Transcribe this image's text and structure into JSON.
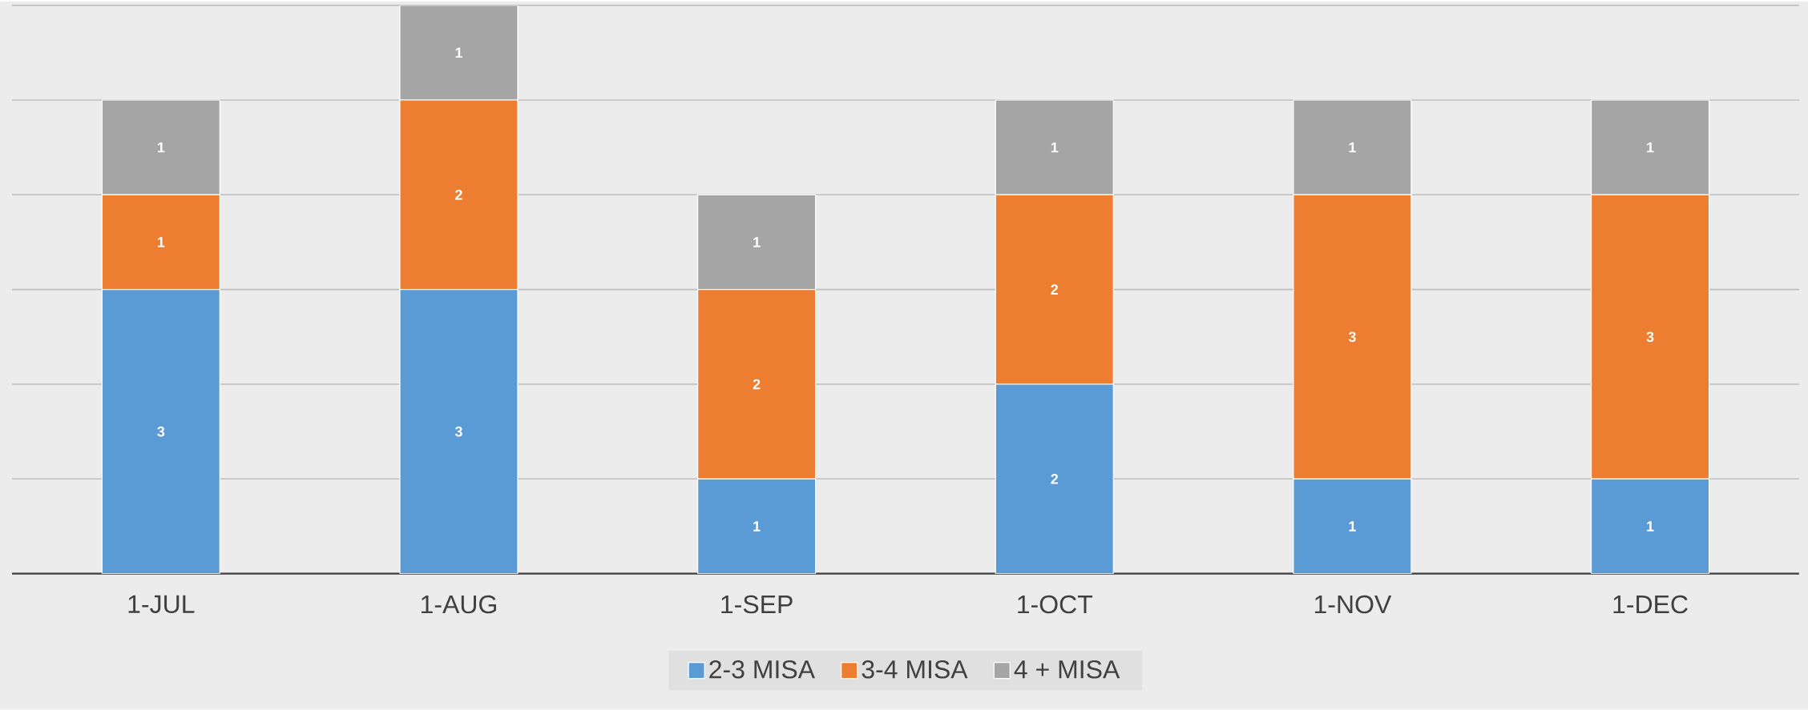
{
  "chart_data": {
    "type": "bar",
    "stacked": true,
    "categories": [
      "1-JUL",
      "1-AUG",
      "1-SEP",
      "1-OCT",
      "1-NOV",
      "1-DEC"
    ],
    "series": [
      {
        "name": "2-3 MISA",
        "color": "#5b9bd5",
        "values": [
          3,
          3,
          1,
          2,
          1,
          1
        ]
      },
      {
        "name": "3-4 MISA",
        "color": "#ed7d31",
        "values": [
          1,
          2,
          2,
          2,
          3,
          3
        ]
      },
      {
        "name": "4 + MISA",
        "color": "#a5a5a5",
        "values": [
          1,
          1,
          1,
          1,
          1,
          1
        ]
      }
    ],
    "grid": "y",
    "legend": "bottom",
    "tick_labels": "x",
    "data_labels": true
  }
}
